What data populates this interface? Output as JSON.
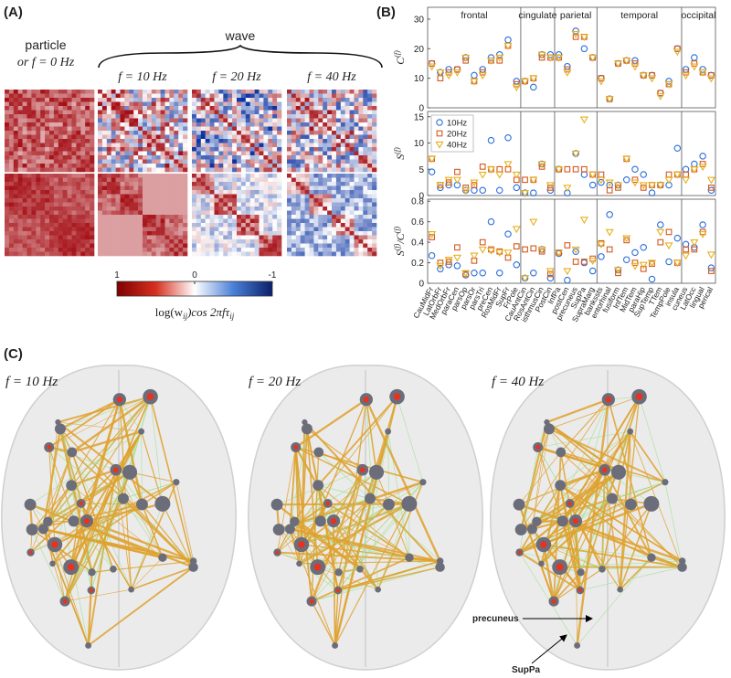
{
  "figure": {
    "panel_a": {
      "label": "(A)",
      "particle_title": [
        "particle",
        "or f = 0 Hz"
      ],
      "wave_title": "wave",
      "column_titles": [
        "f = 10 Hz",
        "f = 20 Hz",
        "f = 40 Hz"
      ],
      "colorbar": {
        "lim": [
          1,
          -1
        ],
        "ticks": [
          1,
          0,
          -1
        ],
        "label": [
          "log(w",
          "ij",
          ")cos 2πfτ",
          "ij"
        ]
      }
    },
    "panel_b": {
      "label": "(B)"
    },
    "panel_c": {
      "label": "(C)",
      "titles": [
        "f = 10 Hz",
        "f = 20 Hz",
        "f = 40 Hz"
      ],
      "annotations": [
        "precuneus",
        "SupPa"
      ]
    }
  },
  "chart_data": [
    {
      "type": "scatter",
      "ylabel": [
        "C",
        "(f)"
      ],
      "ylim": [
        0,
        34
      ],
      "yticks": [
        0,
        10,
        20,
        30
      ],
      "groups": [
        {
          "label": "frontal",
          "size": 11
        },
        {
          "label": "cingulate",
          "size": 4
        },
        {
          "label": "parietal",
          "size": 5
        },
        {
          "label": "temporal",
          "size": 10
        },
        {
          "label": "occipital",
          "size": 4
        }
      ],
      "series": [
        {
          "name": "10Hz",
          "color": "#2a6fdb",
          "marker": "circle",
          "values": [
            15,
            12,
            13,
            13,
            17,
            11,
            13,
            17,
            18,
            23,
            9,
            9,
            7,
            18,
            18,
            18,
            14,
            26,
            20,
            17,
            10,
            3,
            15,
            16,
            16,
            11,
            11,
            5,
            9,
            20,
            13,
            17,
            13,
            11
          ]
        },
        {
          "name": "20Hz",
          "color": "#d4581e",
          "marker": "square",
          "values": [
            15,
            10,
            12,
            13,
            16,
            9,
            12,
            16,
            16,
            21,
            8,
            9,
            10,
            17,
            17,
            17,
            13,
            24,
            24,
            17,
            10,
            3,
            15,
            16,
            15,
            11,
            11,
            5,
            8,
            20,
            12,
            15,
            12,
            11
          ]
        },
        {
          "name": "40Hz",
          "color": "#e8b020",
          "marker": "triangle",
          "values": [
            14,
            12,
            11,
            12,
            17,
            9,
            11,
            16,
            17,
            21,
            7,
            9,
            10,
            18,
            17,
            17,
            12,
            25,
            24,
            17,
            9,
            3,
            15,
            16,
            14,
            11,
            10,
            4,
            8,
            19,
            11,
            14,
            12,
            10
          ]
        }
      ]
    },
    {
      "type": "scatter",
      "ylabel": [
        "S",
        "(f)"
      ],
      "ylim": [
        0,
        16
      ],
      "yticks": [
        0,
        5,
        10,
        15
      ],
      "legend": "upper left",
      "series": [
        {
          "name": "10Hz",
          "color": "#2a6fdb",
          "marker": "circle",
          "values": [
            4.5,
            1.5,
            2,
            2,
            1,
            1,
            1,
            10.5,
            1,
            11,
            1.5,
            0.5,
            0.5,
            6,
            1,
            5,
            0.5,
            8,
            4,
            2,
            2.5,
            2,
            2,
            3,
            5,
            4,
            0.5,
            2,
            2,
            9,
            5,
            6,
            7.5,
            1
          ]
        },
        {
          "name": "20Hz",
          "color": "#d4581e",
          "marker": "square",
          "values": [
            7,
            2,
            2.5,
            4.5,
            1.5,
            2,
            5.5,
            5,
            5,
            5,
            3,
            3,
            3,
            5.5,
            1.5,
            5,
            5,
            5,
            5,
            4,
            4,
            1,
            1.5,
            7,
            3,
            1.5,
            2,
            2,
            4,
            4,
            4,
            5,
            6,
            1.5
          ]
        },
        {
          "name": "40Hz",
          "color": "#e8b020",
          "marker": "triangle",
          "values": [
            7,
            2,
            3,
            3,
            1,
            2.5,
            4,
            5,
            4,
            6,
            4,
            0.5,
            3,
            6,
            2,
            5,
            1.5,
            8,
            14.5,
            4,
            3,
            2.5,
            2,
            7,
            2.5,
            2,
            2,
            2,
            3,
            4,
            3,
            5,
            5.5,
            3
          ]
        }
      ]
    },
    {
      "type": "scatter",
      "ylabel": [
        "S",
        "(f)",
        "/C",
        "(f)"
      ],
      "ylim": [
        0,
        0.82
      ],
      "yticks": [
        0,
        0.2,
        0.4,
        0.6,
        0.8
      ],
      "categories": [
        "CauMidFr",
        "LatOrbFr",
        "MedOrbFr",
        "paraCen",
        "parsOp",
        "parsOr",
        "parsTri",
        "preCen",
        "RosMidFr",
        "SupFr",
        "FrPole",
        "CauAntCin",
        "RosAntCin",
        "isthmusCin",
        "PostCin",
        "InfPa",
        "postCen",
        "precuneus",
        "SupPa",
        "SupraMarg",
        "bankssts",
        "entorhinal",
        "fusiform",
        "InfTem",
        "MidTem",
        "paraHip",
        "SupTemp",
        "TTem",
        "TempPole",
        "insula",
        "cuneus",
        "LatOcc",
        "lingual",
        "perical"
      ],
      "series": [
        {
          "name": "10Hz",
          "color": "#2a6fdb",
          "marker": "circle",
          "values": [
            0.27,
            0.14,
            0.18,
            0.17,
            0.08,
            0.1,
            0.1,
            0.6,
            0.1,
            0.48,
            0.18,
            0.05,
            0.1,
            0.33,
            0.05,
            0.29,
            0.03,
            0.31,
            0.2,
            0.12,
            0.26,
            0.67,
            0.13,
            0.23,
            0.3,
            0.35,
            0.04,
            0.57,
            0.21,
            0.44,
            0.38,
            0.35,
            0.57,
            0.15
          ]
        },
        {
          "name": "20Hz",
          "color": "#d4581e",
          "marker": "square",
          "values": [
            0.45,
            0.2,
            0.21,
            0.35,
            0.09,
            0.22,
            0.4,
            0.33,
            0.31,
            0.25,
            0.36,
            0.33,
            0.34,
            0.31,
            0.09,
            0.3,
            0.37,
            0.21,
            0.21,
            0.24,
            0.39,
            0.33,
            0.1,
            0.42,
            0.2,
            0.14,
            0.19,
            0.4,
            0.5,
            0.2,
            0.33,
            0.33,
            0.5,
            0.12
          ]
        },
        {
          "name": "40Hz",
          "color": "#e8b020",
          "marker": "triangle",
          "values": [
            0.48,
            0.17,
            0.23,
            0.25,
            0.1,
            0.27,
            0.33,
            0.32,
            0.3,
            0.3,
            0.53,
            0.05,
            0.6,
            0.33,
            0.12,
            0.3,
            0.12,
            0.33,
            0.62,
            0.22,
            0.38,
            0.5,
            0.13,
            0.44,
            0.17,
            0.18,
            0.2,
            0.5,
            0.37,
            0.2,
            0.27,
            0.4,
            0.48,
            0.28
          ]
        }
      ]
    }
  ]
}
